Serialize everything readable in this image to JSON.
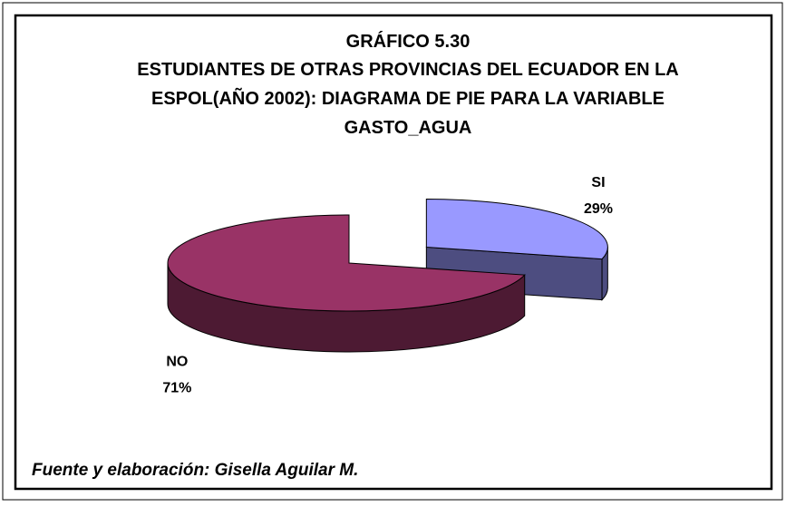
{
  "chart_data": {
    "type": "pie",
    "title": [
      "GRÁFICO 5.30",
      "ESTUDIANTES DE OTRAS PROVINCIAS DEL ECUADOR EN LA",
      "ESPOL(AÑO 2002): DIAGRAMA DE PIE PARA LA VARIABLE",
      "GASTO_AGUA"
    ],
    "categories": [
      "SI",
      "NO"
    ],
    "values": [
      29,
      71
    ],
    "value_labels": [
      "29%",
      "71%"
    ],
    "colors": [
      "#9999ff",
      "#993366"
    ],
    "source": "Fuente y elaboración: Gisella Aguilar M."
  }
}
